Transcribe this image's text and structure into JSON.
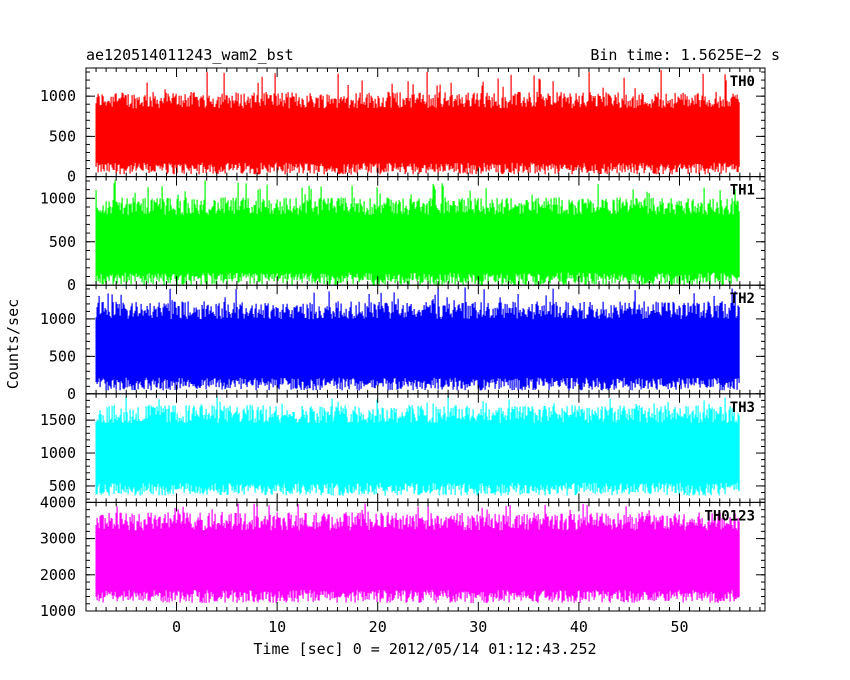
{
  "header": {
    "title": "ae120514011243_wam2_bst",
    "bin_time": "Bin time: 1.5625E−2 s"
  },
  "ylabel": "Counts/sec",
  "xlabel": "Time [sec] 0 = 2012/05/14 01:12:43.252",
  "chart_data": {
    "type": "line",
    "title": "ae120514011243_wam2_bst",
    "xlabel": "Time [sec] 0 = 2012/05/14 01:12:43.252",
    "ylabel": "Counts/sec",
    "xlim": [
      -9,
      58.5
    ],
    "x_data_range": [
      -8,
      56
    ],
    "bin_time_s": 0.015625,
    "x_ticks": [
      0,
      10,
      20,
      30,
      40,
      50
    ],
    "x_tick_labels": [
      "0",
      "10",
      "20",
      "30",
      "40",
      "50"
    ],
    "panels": [
      {
        "name": "TH0",
        "color": "#ff0000",
        "ylim": [
          0,
          1350
        ],
        "y_ticks": [
          0,
          500,
          1000
        ],
        "y_tick_labels": [
          "0",
          "500",
          "1000"
        ],
        "typical_low": 100,
        "typical_high": 920,
        "peak": 1330
      },
      {
        "name": "TH1",
        "color": "#00ff00",
        "ylim": [
          0,
          1250
        ],
        "y_ticks": [
          0,
          500,
          1000
        ],
        "y_tick_labels": [
          "0",
          "500",
          "1000"
        ],
        "typical_low": 70,
        "typical_high": 880,
        "peak": 1220
      },
      {
        "name": "TH2",
        "color": "#0000ff",
        "ylim": [
          0,
          1450
        ],
        "y_ticks": [
          0,
          500,
          1000
        ],
        "y_tick_labels": [
          "0",
          "500",
          "1000"
        ],
        "typical_low": 130,
        "typical_high": 1080,
        "peak": 1430
      },
      {
        "name": "TH3",
        "color": "#00ffff",
        "ylim": [
          250,
          1900
        ],
        "y_ticks": [
          500,
          1000,
          1500
        ],
        "y_tick_labels": [
          "500",
          "1000",
          "1500"
        ],
        "typical_low": 450,
        "typical_high": 1550,
        "peak": 1880
      },
      {
        "name": "TH0123",
        "color": "#ff00ff",
        "ylim": [
          1000,
          4000
        ],
        "y_ticks": [
          1000,
          2000,
          3000,
          4000
        ],
        "y_tick_labels": [
          "1000",
          "2000",
          "3000",
          "4000"
        ],
        "typical_low": 1400,
        "typical_high": 3400,
        "peak": 3980
      }
    ]
  }
}
